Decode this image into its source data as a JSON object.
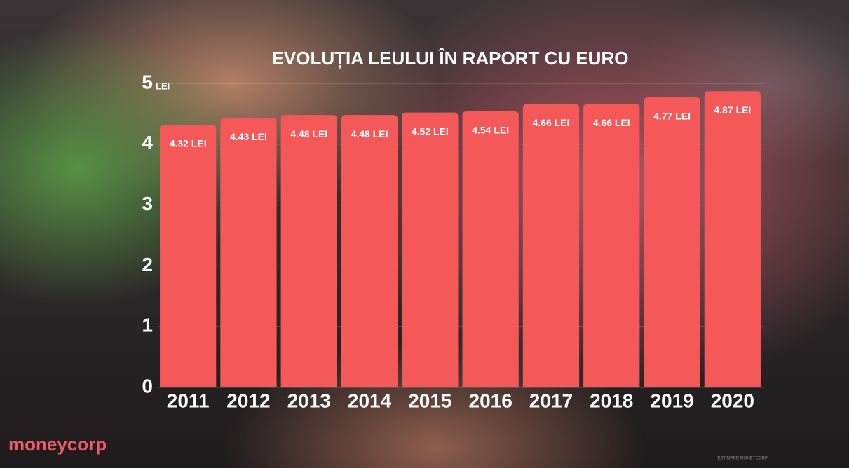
{
  "chart_data": {
    "type": "bar",
    "title": "EVOLUȚIA LEULUI ÎN RAPORT CU EURO",
    "categories": [
      "2011",
      "2012",
      "2013",
      "2014",
      "2015",
      "2016",
      "2017",
      "2018",
      "2019",
      "2020"
    ],
    "values": [
      4.32,
      4.43,
      4.48,
      4.48,
      4.52,
      4.54,
      4.66,
      4.66,
      4.77,
      4.87
    ],
    "value_labels": [
      "4.32 LEI",
      "4.43 LEI",
      "4.48 LEI",
      "4.48 LEI",
      "4.52 LEI",
      "4.54 LEI",
      "4.66 LEI",
      "4.66 LEI",
      "4.77 LEI",
      "4.87 LEI"
    ],
    "color": "#f55858",
    "ylim": [
      0,
      5
    ],
    "yticks": [
      0,
      1,
      2,
      3,
      4,
      5
    ],
    "y_unit": "LEI",
    "grid": true,
    "note": "ESTIMARE MONEYCORP",
    "logo": "moneycorp"
  }
}
